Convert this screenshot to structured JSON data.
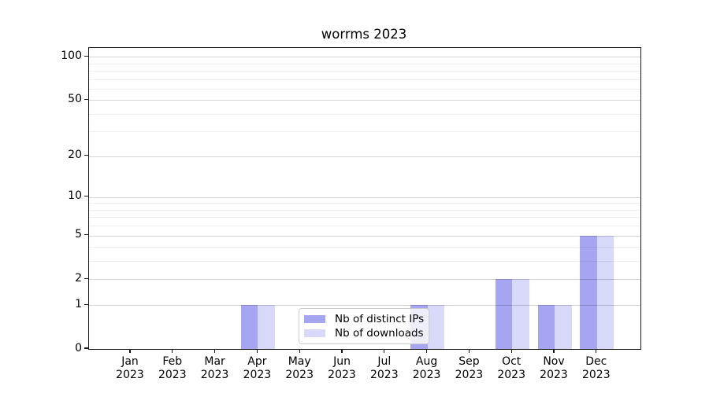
{
  "title": "worrms 2023",
  "chart_data": {
    "type": "bar",
    "title": "worrms 2023",
    "xlabel": "",
    "ylabel": "",
    "categories": [
      [
        "Jan",
        "2023"
      ],
      [
        "Feb",
        "2023"
      ],
      [
        "Mar",
        "2023"
      ],
      [
        "Apr",
        "2023"
      ],
      [
        "May",
        "2023"
      ],
      [
        "Jun",
        "2023"
      ],
      [
        "Jul",
        "2023"
      ],
      [
        "Aug",
        "2023"
      ],
      [
        "Sep",
        "2023"
      ],
      [
        "Oct",
        "2023"
      ],
      [
        "Nov",
        "2023"
      ],
      [
        "Dec",
        "2023"
      ]
    ],
    "series": [
      {
        "name": "Nb of distinct IPs",
        "color": "#a5a5f1",
        "values": [
          0,
          0,
          0,
          1,
          0,
          0,
          0,
          1,
          0,
          2,
          1,
          5
        ]
      },
      {
        "name": "Nb of downloads",
        "color": "#d8d8f8",
        "values": [
          0,
          0,
          0,
          1,
          0,
          0,
          0,
          1,
          0,
          2,
          1,
          5
        ]
      }
    ],
    "y_axis": {
      "scale": "log1p",
      "major_ticks": [
        0,
        1,
        2,
        5,
        10,
        20,
        50,
        100
      ],
      "minor_gridlines": [
        3,
        4,
        6,
        7,
        8,
        9,
        30,
        40,
        60,
        70,
        80,
        90
      ],
      "top_value": 115
    },
    "grid": true,
    "legend_position": "lower center"
  }
}
